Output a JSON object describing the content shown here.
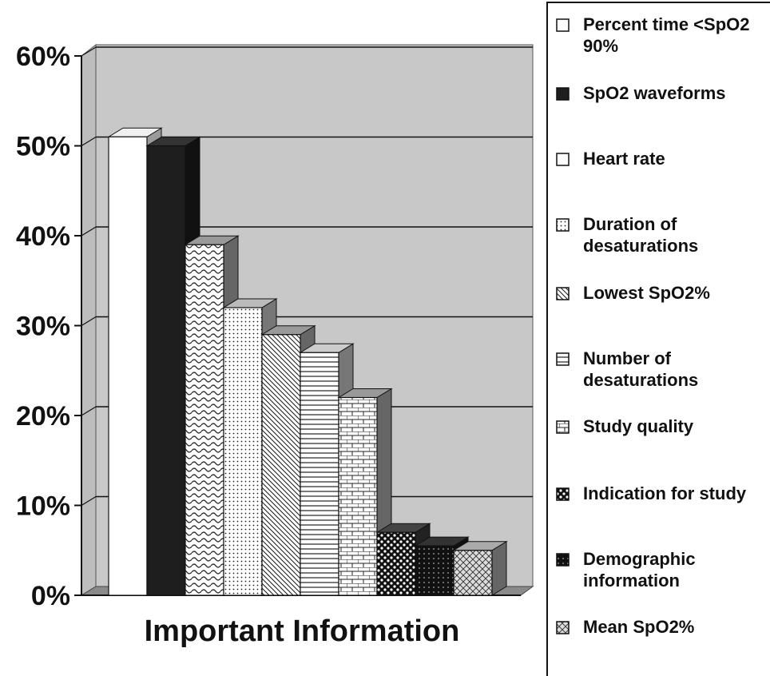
{
  "chart_data": {
    "type": "bar",
    "title": "",
    "xlabel": "Important Information",
    "ylabel": "",
    "ylim": [
      0,
      0.6
    ],
    "yticks": [
      "0%",
      "10%",
      "20%",
      "30%",
      "40%",
      "50%",
      "60%"
    ],
    "grid": true,
    "legend_position": "right",
    "categories": [
      "Percent time <SpO2 90%",
      "SpO2 waveforms",
      "Heart rate",
      "Duration of desaturations",
      "Lowest SpO2%",
      "Number of desaturations",
      "Study quality",
      "Indication for study",
      "Demographic information",
      "Mean SpO2%"
    ],
    "values": [
      0.51,
      0.5,
      0.39,
      0.32,
      0.29,
      0.27,
      0.22,
      0.07,
      0.055,
      0.05
    ],
    "legend": [
      [
        "Percent time <SpO2",
        "90%"
      ],
      [
        "SpO2 waveforms"
      ],
      [
        "Heart rate"
      ],
      [
        "Duration of",
        "desaturations"
      ],
      [
        "Lowest SpO2%"
      ],
      [
        "Number of",
        "desaturations"
      ],
      [
        "Study quality"
      ],
      [
        "Indication for study"
      ],
      [
        "Demographic",
        "information"
      ],
      [
        "Mean SpO2%"
      ]
    ]
  }
}
